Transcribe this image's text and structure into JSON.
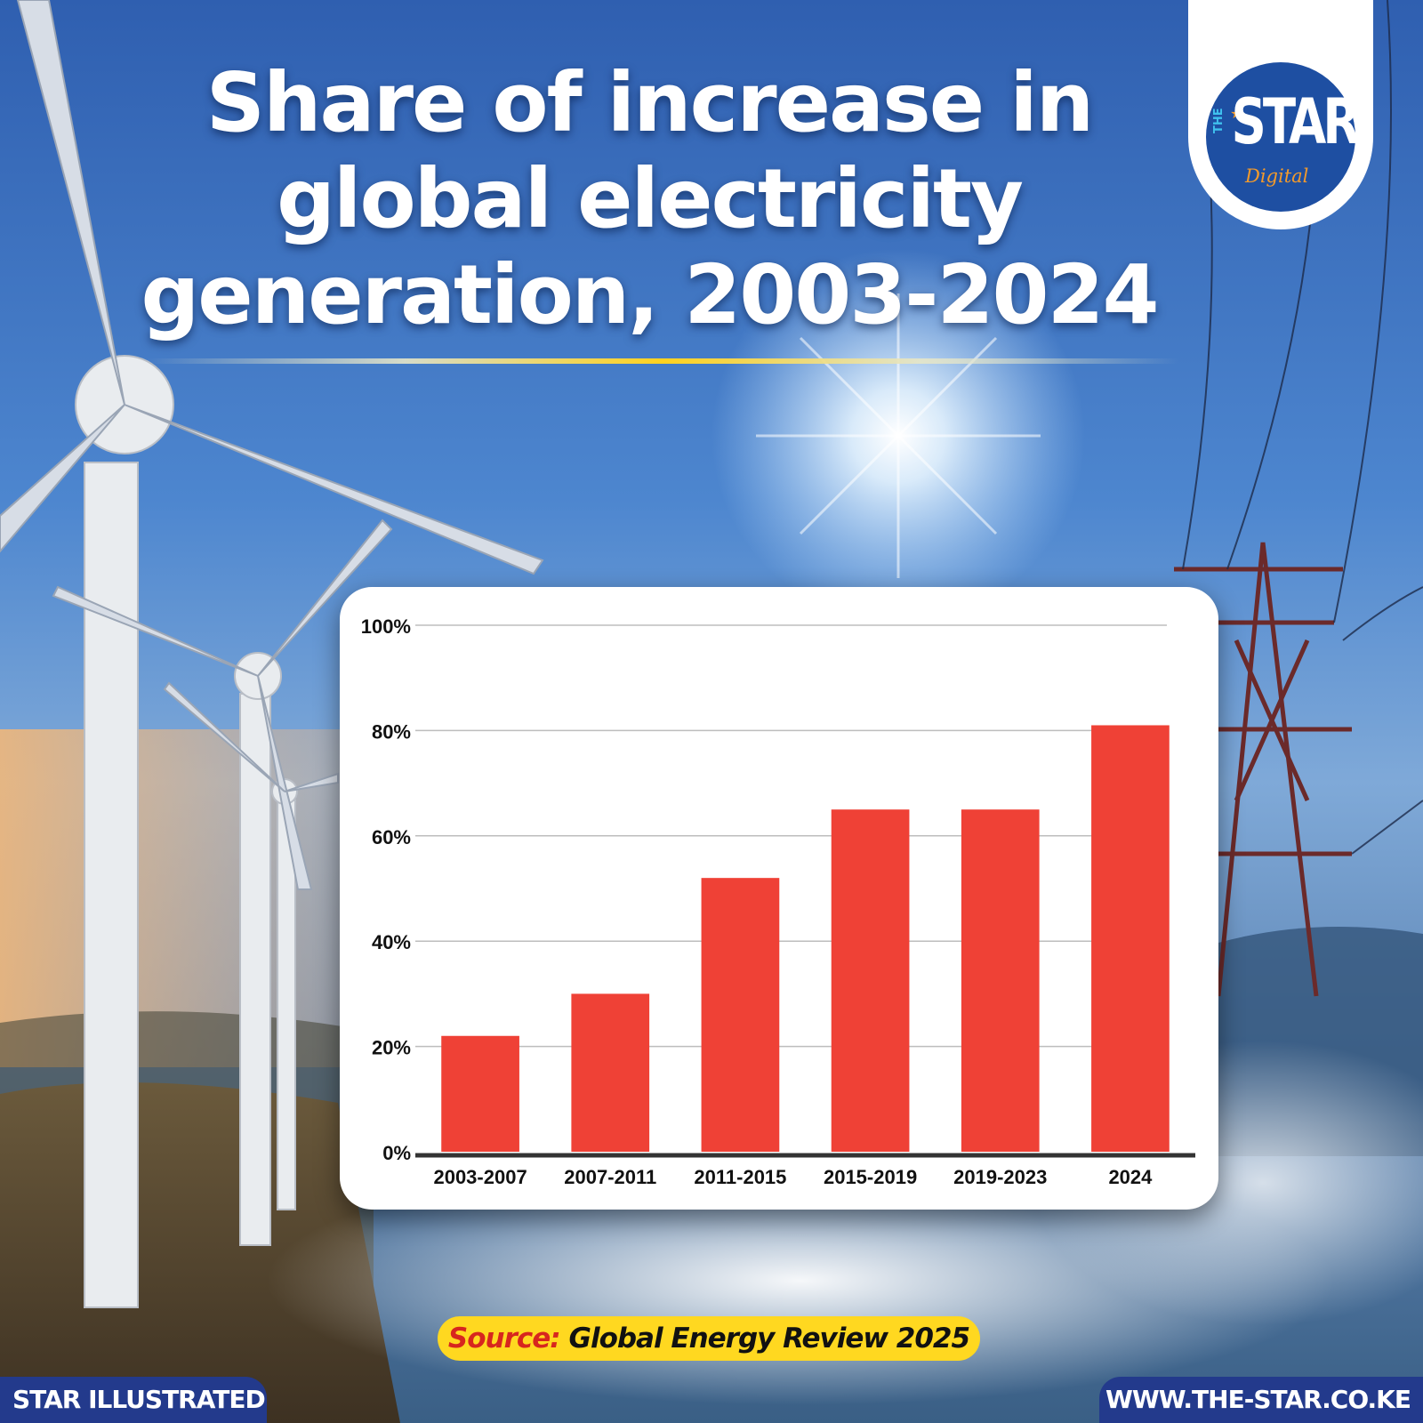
{
  "title_lines": [
    "Share of increase in",
    "global electricity",
    "generation, 2003-2024"
  ],
  "logo": {
    "prefix": "THE",
    "word": "STAR",
    "suffix": "Digital"
  },
  "source": {
    "label": "Source:",
    "value": "Global Energy Review 2025"
  },
  "footer": {
    "left": "STAR ILLUSTRATED",
    "right": "WWW.THE-STAR.CO.KE"
  },
  "colors": {
    "bar": "#ef4136",
    "footer": "#233a8c",
    "source_pill": "#ffd820",
    "source_label": "#d7261e",
    "logo": "#1e4fa2"
  },
  "chart_data": {
    "type": "bar",
    "title": "Share of increase in global electricity generation, 2003-2024",
    "xlabel": "",
    "ylabel": "",
    "categories": [
      "2003-2007",
      "2007-2011",
      "2011-2015",
      "2015-2019",
      "2019-2023",
      "2024"
    ],
    "values": [
      22,
      30,
      52,
      65,
      65,
      81
    ],
    "ylim": [
      0,
      100
    ],
    "yticks": [
      0,
      20,
      40,
      60,
      80,
      100
    ],
    "ytick_labels": [
      "0%",
      "20%",
      "40%",
      "60%",
      "80%",
      "100%"
    ],
    "grid": true,
    "legend": "none"
  }
}
